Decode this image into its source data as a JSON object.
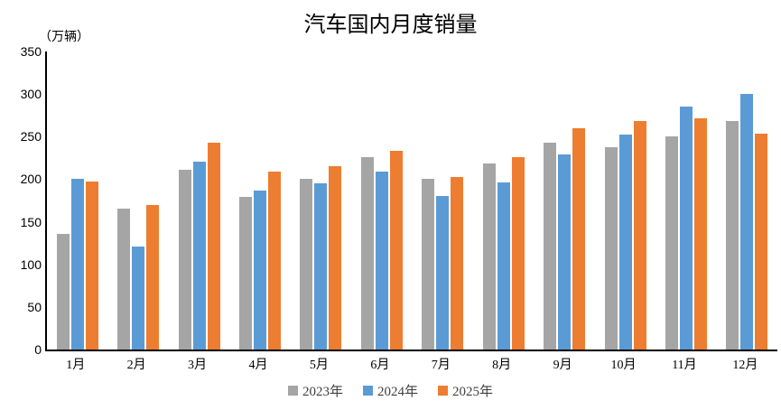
{
  "chart_data": {
    "type": "bar",
    "title": "汽车国内月度销量",
    "unit_label": "（万辆）",
    "xlabel": "",
    "ylabel": "万辆",
    "ylim": [
      0,
      350
    ],
    "yticks": [
      0,
      50,
      100,
      150,
      200,
      250,
      300,
      350
    ],
    "grid": false,
    "legend_position": "bottom",
    "axis_color": "#000000",
    "categories": [
      "1月",
      "2月",
      "3月",
      "4月",
      "5月",
      "6月",
      "7月",
      "8月",
      "9月",
      "10月",
      "11月",
      "12月"
    ],
    "series": [
      {
        "name": "2023年",
        "color": "#A5A5A5",
        "values": [
          136,
          166,
          211,
          179,
          200,
          226,
          201,
          219,
          243,
          238,
          250,
          268
        ]
      },
      {
        "name": "2024年",
        "color": "#5B9BD5",
        "values": [
          201,
          121,
          221,
          187,
          195,
          209,
          180,
          196,
          229,
          253,
          285,
          300
        ]
      },
      {
        "name": "2025年",
        "color": "#ED7D31",
        "values": [
          197,
          170,
          243,
          209,
          215,
          233,
          203,
          226,
          260,
          268,
          272,
          254
        ]
      }
    ]
  }
}
